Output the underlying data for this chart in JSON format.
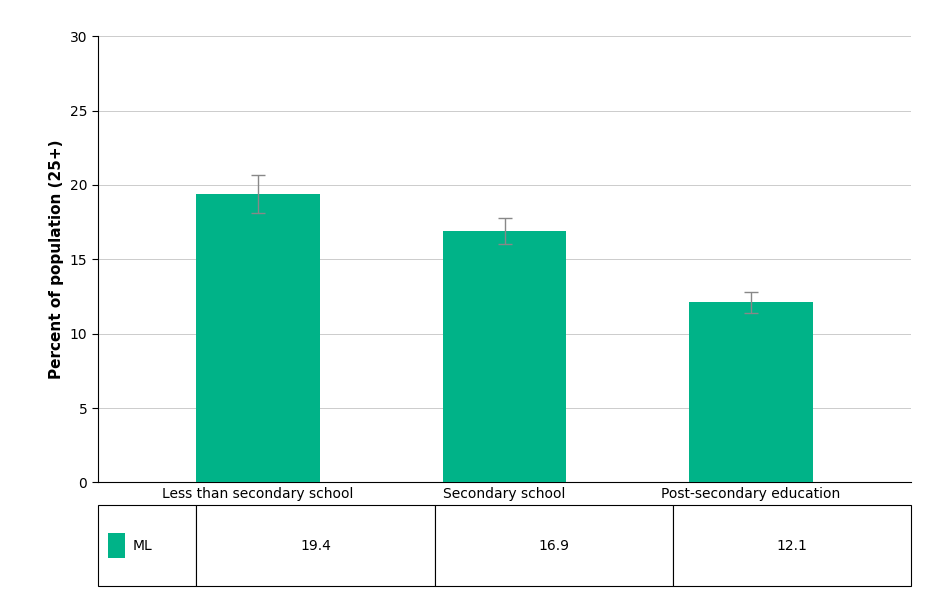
{
  "categories": [
    "Less than secondary school",
    "Secondary school",
    "Post-secondary education"
  ],
  "values": [
    19.4,
    16.9,
    12.1
  ],
  "errors": [
    1.3,
    0.9,
    0.7
  ],
  "bar_color": "#00B388",
  "bar_width": 0.5,
  "ylabel": "Percent of population (25+)",
  "ylim": [
    0,
    30
  ],
  "yticks": [
    0,
    5,
    10,
    15,
    20,
    25,
    30
  ],
  "legend_label": "ML",
  "table_values": [
    "19.4",
    "16.9",
    "12.1"
  ],
  "background_color": "#ffffff",
  "error_color": "#888888",
  "error_capsize": 5,
  "ylabel_fontsize": 11,
  "tick_fontsize": 10,
  "table_fontsize": 10
}
